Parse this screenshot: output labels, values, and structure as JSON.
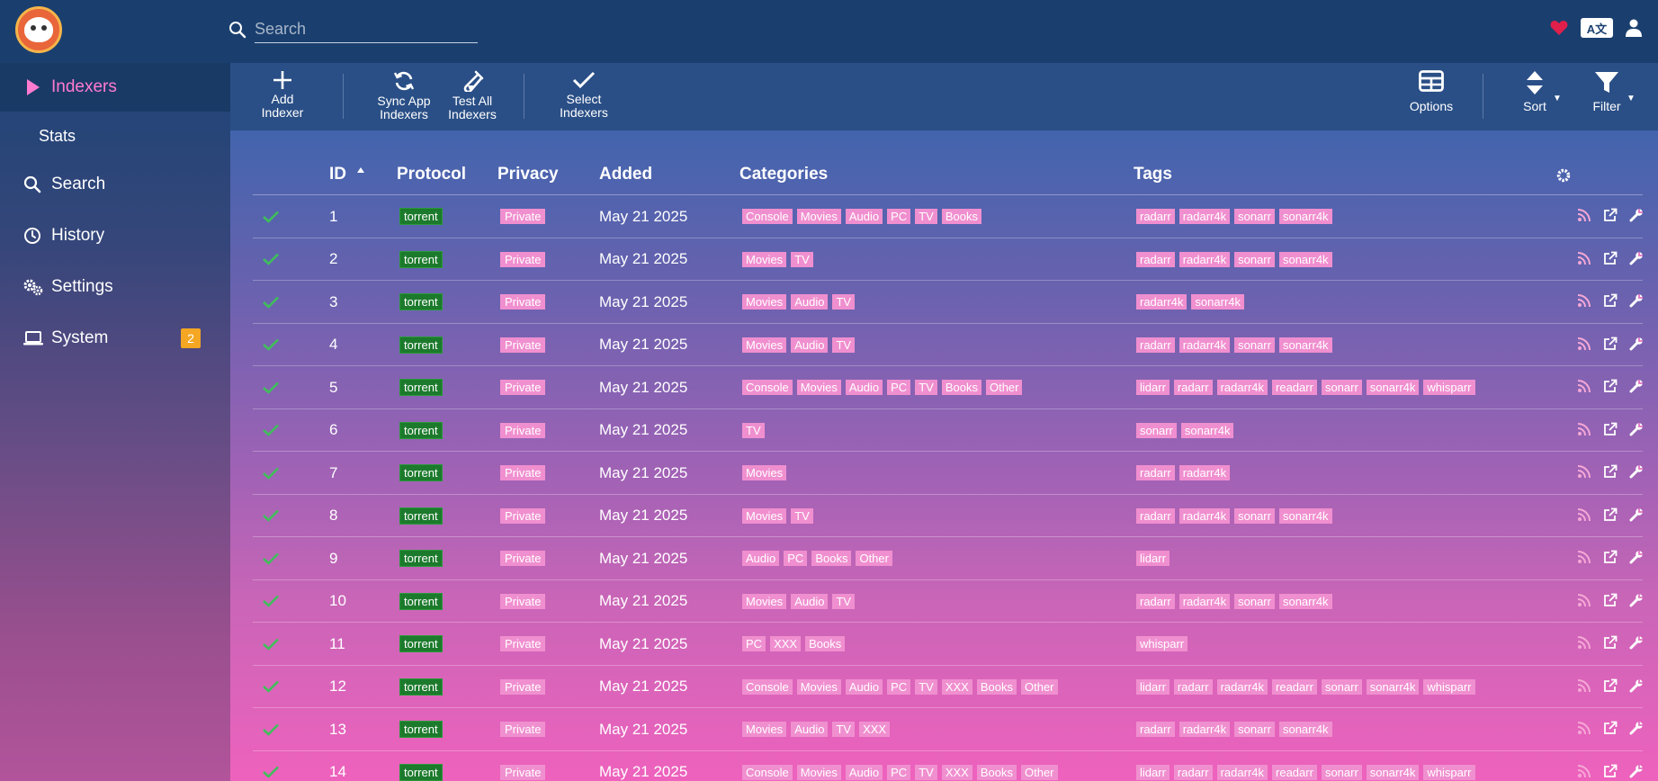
{
  "header": {
    "search_placeholder": "Search",
    "colors": {
      "bg": "#1a3f6f",
      "heart": "#e0204a"
    }
  },
  "sidebar": {
    "items": [
      {
        "label": "Indexers",
        "icon": "play-icon",
        "active": true
      },
      {
        "label": "Stats",
        "icon": "",
        "sub": true
      },
      {
        "label": "Search",
        "icon": "search-icon"
      },
      {
        "label": "History",
        "icon": "clock-icon"
      },
      {
        "label": "Settings",
        "icon": "gears-icon"
      },
      {
        "label": "System",
        "icon": "laptop-icon",
        "badge": "2"
      }
    ]
  },
  "toolbar": {
    "add_indexer": "Add Indexer",
    "sync_app_indexers": "Sync App Indexers",
    "test_all_indexers": "Test All Indexers",
    "select_indexers": "Select Indexers",
    "options": "Options",
    "sort": "Sort",
    "filter": "Filter"
  },
  "table": {
    "headers": {
      "id": "ID",
      "protocol": "Protocol",
      "privacy": "Privacy",
      "added": "Added",
      "categories": "Categories",
      "tags": "Tags"
    },
    "rows": [
      {
        "id": "1",
        "protocol": "torrent",
        "privacy": "Private",
        "added": "May 21 2025",
        "categories": [
          "Console",
          "Movies",
          "Audio",
          "PC",
          "TV",
          "Books"
        ],
        "tags": [
          "radarr",
          "radarr4k",
          "sonarr",
          "sonarr4k"
        ]
      },
      {
        "id": "2",
        "protocol": "torrent",
        "privacy": "Private",
        "added": "May 21 2025",
        "categories": [
          "Movies",
          "TV"
        ],
        "tags": [
          "radarr",
          "radarr4k",
          "sonarr",
          "sonarr4k"
        ]
      },
      {
        "id": "3",
        "protocol": "torrent",
        "privacy": "Private",
        "added": "May 21 2025",
        "categories": [
          "Movies",
          "Audio",
          "TV"
        ],
        "tags": [
          "radarr4k",
          "sonarr4k"
        ]
      },
      {
        "id": "4",
        "protocol": "torrent",
        "privacy": "Private",
        "added": "May 21 2025",
        "categories": [
          "Movies",
          "Audio",
          "TV"
        ],
        "tags": [
          "radarr",
          "radarr4k",
          "sonarr",
          "sonarr4k"
        ]
      },
      {
        "id": "5",
        "protocol": "torrent",
        "privacy": "Private",
        "added": "May 21 2025",
        "categories": [
          "Console",
          "Movies",
          "Audio",
          "PC",
          "TV",
          "Books",
          "Other"
        ],
        "tags": [
          "lidarr",
          "radarr",
          "radarr4k",
          "readarr",
          "sonarr",
          "sonarr4k",
          "whisparr"
        ]
      },
      {
        "id": "6",
        "protocol": "torrent",
        "privacy": "Private",
        "added": "May 21 2025",
        "categories": [
          "TV"
        ],
        "tags": [
          "sonarr",
          "sonarr4k"
        ]
      },
      {
        "id": "7",
        "protocol": "torrent",
        "privacy": "Private",
        "added": "May 21 2025",
        "categories": [
          "Movies"
        ],
        "tags": [
          "radarr",
          "radarr4k"
        ]
      },
      {
        "id": "8",
        "protocol": "torrent",
        "privacy": "Private",
        "added": "May 21 2025",
        "categories": [
          "Movies",
          "TV"
        ],
        "tags": [
          "radarr",
          "radarr4k",
          "sonarr",
          "sonarr4k"
        ]
      },
      {
        "id": "9",
        "protocol": "torrent",
        "privacy": "Private",
        "added": "May 21 2025",
        "categories": [
          "Audio",
          "PC",
          "Books",
          "Other"
        ],
        "tags": [
          "lidarr"
        ]
      },
      {
        "id": "10",
        "protocol": "torrent",
        "privacy": "Private",
        "added": "May 21 2025",
        "categories": [
          "Movies",
          "Audio",
          "TV"
        ],
        "tags": [
          "radarr",
          "radarr4k",
          "sonarr",
          "sonarr4k"
        ]
      },
      {
        "id": "11",
        "protocol": "torrent",
        "privacy": "Private",
        "added": "May 21 2025",
        "categories": [
          "PC",
          "XXX",
          "Books"
        ],
        "tags": [
          "whisparr"
        ]
      },
      {
        "id": "12",
        "protocol": "torrent",
        "privacy": "Private",
        "added": "May 21 2025",
        "categories": [
          "Console",
          "Movies",
          "Audio",
          "PC",
          "TV",
          "XXX",
          "Books",
          "Other"
        ],
        "tags": [
          "lidarr",
          "radarr",
          "radarr4k",
          "readarr",
          "sonarr",
          "sonarr4k",
          "whisparr"
        ]
      },
      {
        "id": "13",
        "protocol": "torrent",
        "privacy": "Private",
        "added": "May 21 2025",
        "categories": [
          "Movies",
          "Audio",
          "TV",
          "XXX"
        ],
        "tags": [
          "radarr",
          "radarr4k",
          "sonarr",
          "sonarr4k"
        ]
      },
      {
        "id": "14",
        "protocol": "torrent",
        "privacy": "Private",
        "added": "May 21 2025",
        "categories": [
          "Console",
          "Movies",
          "Audio",
          "PC",
          "TV",
          "XXX",
          "Books",
          "Other"
        ],
        "tags": [
          "lidarr",
          "radarr",
          "radarr4k",
          "readarr",
          "sonarr",
          "sonarr4k",
          "whisparr"
        ]
      }
    ]
  }
}
